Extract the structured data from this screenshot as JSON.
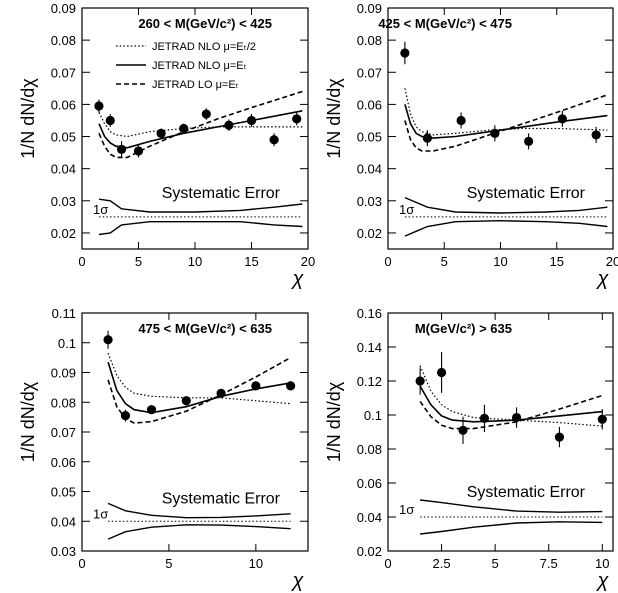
{
  "chart_data": [
    {
      "type": "scatter",
      "title": "260 < M(GeV/c²) < 425",
      "xlabel": "χ",
      "ylabel": "1/N dN/dχ",
      "xlim": [
        0,
        20
      ],
      "ylim": [
        0.015,
        0.09
      ],
      "xticks": [
        "0",
        "5",
        "10",
        "15",
        "20"
      ],
      "yticks": [
        "0.02",
        "0.03",
        "0.04",
        "0.05",
        "0.06",
        "0.07",
        "0.08",
        "0.09"
      ],
      "legend": [
        {
          "label": "JETRAD NLO μ=Eₜ/2",
          "style": "dotted"
        },
        {
          "label": "JETRAD NLO μ=Eₜ",
          "style": "solid"
        },
        {
          "label": "JETRAD LO μ=Eₜ",
          "style": "dashed"
        }
      ],
      "systematic_label": "Systematic Error",
      "sigma_label": "1σ",
      "sigma_line": 0.025,
      "points": [
        {
          "x": 1.5,
          "y": 0.0595,
          "err": 0.002
        },
        {
          "x": 2.5,
          "y": 0.055,
          "err": 0.002
        },
        {
          "x": 3.5,
          "y": 0.046,
          "err": 0.0025
        },
        {
          "x": 5.0,
          "y": 0.0455,
          "err": 0.002
        },
        {
          "x": 7.0,
          "y": 0.051,
          "err": 0.0015
        },
        {
          "x": 9.0,
          "y": 0.0525,
          "err": 0.0015
        },
        {
          "x": 11.0,
          "y": 0.057,
          "err": 0.0018
        },
        {
          "x": 13.0,
          "y": 0.0535,
          "err": 0.0018
        },
        {
          "x": 15.0,
          "y": 0.055,
          "err": 0.002
        },
        {
          "x": 17.0,
          "y": 0.049,
          "err": 0.002
        },
        {
          "x": 19.0,
          "y": 0.0555,
          "err": 0.002
        }
      ],
      "curves": {
        "nlo_half": [
          [
            1.5,
            0.0575
          ],
          [
            2.0,
            0.054
          ],
          [
            2.5,
            0.0515
          ],
          [
            3.0,
            0.0505
          ],
          [
            4.0,
            0.05
          ],
          [
            6.0,
            0.0515
          ],
          [
            9.0,
            0.0525
          ],
          [
            12.0,
            0.053
          ],
          [
            15.0,
            0.053
          ],
          [
            19.5,
            0.053
          ]
        ],
        "nlo": [
          [
            1.5,
            0.054
          ],
          [
            2.0,
            0.05
          ],
          [
            2.5,
            0.048
          ],
          [
            3.0,
            0.047
          ],
          [
            4.0,
            0.0465
          ],
          [
            6.0,
            0.0485
          ],
          [
            9.0,
            0.051
          ],
          [
            12.0,
            0.053
          ],
          [
            15.0,
            0.055
          ],
          [
            19.5,
            0.058
          ]
        ],
        "lo": [
          [
            1.5,
            0.051
          ],
          [
            2.0,
            0.047
          ],
          [
            2.5,
            0.0445
          ],
          [
            3.0,
            0.0435
          ],
          [
            4.0,
            0.0435
          ],
          [
            6.0,
            0.047
          ],
          [
            9.0,
            0.0515
          ],
          [
            12.0,
            0.0555
          ],
          [
            15.0,
            0.059
          ],
          [
            19.5,
            0.064
          ]
        ],
        "sys_upper": [
          [
            1.5,
            0.0305
          ],
          [
            2.5,
            0.03
          ],
          [
            3.5,
            0.0275
          ],
          [
            6.0,
            0.0265
          ],
          [
            10.0,
            0.0265
          ],
          [
            14.0,
            0.027
          ],
          [
            17.0,
            0.028
          ],
          [
            19.5,
            0.029
          ]
        ],
        "sys_lower": [
          [
            1.5,
            0.0195
          ],
          [
            2.5,
            0.02
          ],
          [
            3.5,
            0.0225
          ],
          [
            6.0,
            0.0235
          ],
          [
            10.0,
            0.0235
          ],
          [
            14.0,
            0.0235
          ],
          [
            17.0,
            0.0225
          ],
          [
            19.5,
            0.022
          ]
        ]
      }
    },
    {
      "type": "scatter",
      "title": "425 < M(GeV/c²) < 475",
      "xlabel": "χ",
      "ylabel": "1/N dN/dχ",
      "xlim": [
        0,
        20
      ],
      "ylim": [
        0.015,
        0.09
      ],
      "xticks": [
        "0",
        "5",
        "10",
        "15",
        "20"
      ],
      "yticks": [
        "0.02",
        "0.03",
        "0.04",
        "0.05",
        "0.06",
        "0.07",
        "0.08",
        "0.09"
      ],
      "systematic_label": "Systematic Error",
      "sigma_label": "1σ",
      "sigma_line": 0.025,
      "points": [
        {
          "x": 1.5,
          "y": 0.076,
          "err": 0.0035
        },
        {
          "x": 3.5,
          "y": 0.0495,
          "err": 0.0025
        },
        {
          "x": 6.5,
          "y": 0.055,
          "err": 0.0025
        },
        {
          "x": 9.5,
          "y": 0.051,
          "err": 0.0025
        },
        {
          "x": 12.5,
          "y": 0.0485,
          "err": 0.0025
        },
        {
          "x": 15.5,
          "y": 0.0555,
          "err": 0.0025
        },
        {
          "x": 18.5,
          "y": 0.0505,
          "err": 0.0025
        }
      ],
      "curves": {
        "nlo_half": [
          [
            1.5,
            0.065
          ],
          [
            2.0,
            0.057
          ],
          [
            2.5,
            0.053
          ],
          [
            3.0,
            0.0515
          ],
          [
            4.0,
            0.0505
          ],
          [
            6.0,
            0.051
          ],
          [
            9.0,
            0.052
          ],
          [
            12.0,
            0.0525
          ],
          [
            15.0,
            0.0525
          ],
          [
            19.5,
            0.052
          ]
        ],
        "nlo": [
          [
            1.5,
            0.06
          ],
          [
            2.0,
            0.054
          ],
          [
            2.5,
            0.051
          ],
          [
            3.0,
            0.05
          ],
          [
            4.0,
            0.0495
          ],
          [
            6.0,
            0.05
          ],
          [
            9.0,
            0.0515
          ],
          [
            12.0,
            0.053
          ],
          [
            15.0,
            0.0545
          ],
          [
            19.5,
            0.0565
          ]
        ],
        "lo": [
          [
            1.5,
            0.055
          ],
          [
            2.0,
            0.049
          ],
          [
            2.5,
            0.0465
          ],
          [
            3.0,
            0.0455
          ],
          [
            4.0,
            0.0455
          ],
          [
            6.0,
            0.047
          ],
          [
            9.0,
            0.0505
          ],
          [
            12.0,
            0.054
          ],
          [
            15.0,
            0.0575
          ],
          [
            19.5,
            0.063
          ]
        ],
        "sys_upper": [
          [
            1.5,
            0.031
          ],
          [
            2.5,
            0.0295
          ],
          [
            3.5,
            0.028
          ],
          [
            6.0,
            0.0265
          ],
          [
            10.0,
            0.0262
          ],
          [
            14.0,
            0.0265
          ],
          [
            17.0,
            0.027
          ],
          [
            19.5,
            0.028
          ]
        ],
        "sys_lower": [
          [
            1.5,
            0.019
          ],
          [
            2.5,
            0.0205
          ],
          [
            3.5,
            0.022
          ],
          [
            6.0,
            0.0235
          ],
          [
            10.0,
            0.0238
          ],
          [
            14.0,
            0.0235
          ],
          [
            17.0,
            0.023
          ],
          [
            19.5,
            0.022
          ]
        ]
      }
    },
    {
      "type": "scatter",
      "title": "475 < M(GeV/c²) < 635",
      "xlabel": "χ",
      "ylabel": "1/N dN/dχ",
      "xlim": [
        0,
        13
      ],
      "ylim": [
        0.03,
        0.11
      ],
      "xticks": [
        "0",
        "5",
        "10"
      ],
      "yticks": [
        "0.03",
        "0.04",
        "0.05",
        "0.06",
        "0.07",
        "0.08",
        "0.09",
        "0.1",
        "0.11"
      ],
      "systematic_label": "Systematic Error",
      "sigma_label": "1σ",
      "sigma_line": 0.04,
      "points": [
        {
          "x": 1.5,
          "y": 0.101,
          "err": 0.003
        },
        {
          "x": 2.5,
          "y": 0.0755,
          "err": 0.002
        },
        {
          "x": 4.0,
          "y": 0.0775,
          "err": 0.0015
        },
        {
          "x": 6.0,
          "y": 0.0805,
          "err": 0.0015
        },
        {
          "x": 8.0,
          "y": 0.083,
          "err": 0.0015
        },
        {
          "x": 10.0,
          "y": 0.0855,
          "err": 0.0015
        },
        {
          "x": 12.0,
          "y": 0.0855,
          "err": 0.0015
        }
      ],
      "curves": {
        "nlo_half": [
          [
            1.5,
            0.0965
          ],
          [
            2.0,
            0.089
          ],
          [
            2.5,
            0.085
          ],
          [
            3.0,
            0.083
          ],
          [
            4.0,
            0.082
          ],
          [
            6.0,
            0.0815
          ],
          [
            8.0,
            0.0815
          ],
          [
            10.0,
            0.0805
          ],
          [
            12.0,
            0.0795
          ]
        ],
        "nlo": [
          [
            1.5,
            0.0935
          ],
          [
            2.0,
            0.084
          ],
          [
            2.5,
            0.0795
          ],
          [
            3.0,
            0.0775
          ],
          [
            4.0,
            0.0765
          ],
          [
            6.0,
            0.0785
          ],
          [
            8.0,
            0.082
          ],
          [
            10.0,
            0.0845
          ],
          [
            12.0,
            0.0865
          ]
        ],
        "lo": [
          [
            1.5,
            0.0875
          ],
          [
            2.0,
            0.0785
          ],
          [
            2.5,
            0.0745
          ],
          [
            3.0,
            0.073
          ],
          [
            4.0,
            0.0735
          ],
          [
            6.0,
            0.077
          ],
          [
            8.0,
            0.0825
          ],
          [
            10.0,
            0.0885
          ],
          [
            12.0,
            0.095
          ]
        ],
        "sys_upper": [
          [
            1.5,
            0.046
          ],
          [
            2.5,
            0.0435
          ],
          [
            4.0,
            0.042
          ],
          [
            6.0,
            0.0412
          ],
          [
            8.0,
            0.0413
          ],
          [
            10.0,
            0.0418
          ],
          [
            12.0,
            0.0425
          ]
        ],
        "sys_lower": [
          [
            1.5,
            0.034
          ],
          [
            2.5,
            0.0365
          ],
          [
            4.0,
            0.038
          ],
          [
            6.0,
            0.0388
          ],
          [
            8.0,
            0.0387
          ],
          [
            10.0,
            0.0382
          ],
          [
            12.0,
            0.0375
          ]
        ]
      }
    },
    {
      "type": "scatter",
      "title": "M(GeV/c²) > 635",
      "xlabel": "χ",
      "ylabel": "1/N dN/dχ",
      "xlim": [
        0,
        10.5
      ],
      "ylim": [
        0.02,
        0.16
      ],
      "xticks": [
        "0",
        "2.5",
        "5",
        "7.5",
        "10"
      ],
      "yticks": [
        "0.02",
        "0.04",
        "0.06",
        "0.08",
        "0.1",
        "0.12",
        "0.14",
        "0.16"
      ],
      "systematic_label": "Systematic Error",
      "sigma_label": "1σ",
      "sigma_line": 0.04,
      "points": [
        {
          "x": 1.5,
          "y": 0.12,
          "err": 0.008
        },
        {
          "x": 2.5,
          "y": 0.125,
          "err": 0.012
        },
        {
          "x": 3.5,
          "y": 0.091,
          "err": 0.008
        },
        {
          "x": 4.5,
          "y": 0.098,
          "err": 0.008
        },
        {
          "x": 6.0,
          "y": 0.0985,
          "err": 0.006
        },
        {
          "x": 8.0,
          "y": 0.087,
          "err": 0.006
        },
        {
          "x": 10.0,
          "y": 0.0975,
          "err": 0.006
        }
      ],
      "curves": {
        "nlo_half": [
          [
            1.5,
            0.129
          ],
          [
            2.0,
            0.114
          ],
          [
            2.5,
            0.106
          ],
          [
            3.0,
            0.102
          ],
          [
            4.0,
            0.0985
          ],
          [
            6.0,
            0.097
          ],
          [
            8.0,
            0.0955
          ],
          [
            10.0,
            0.0935
          ]
        ],
        "nlo": [
          [
            1.5,
            0.117
          ],
          [
            2.0,
            0.106
          ],
          [
            2.5,
            0.0995
          ],
          [
            3.0,
            0.097
          ],
          [
            4.0,
            0.096
          ],
          [
            6.0,
            0.097
          ],
          [
            8.0,
            0.0995
          ],
          [
            10.0,
            0.102
          ]
        ],
        "lo": [
          [
            1.5,
            0.108
          ],
          [
            2.0,
            0.099
          ],
          [
            2.5,
            0.094
          ],
          [
            3.0,
            0.092
          ],
          [
            4.0,
            0.092
          ],
          [
            6.0,
            0.096
          ],
          [
            8.0,
            0.1035
          ],
          [
            10.0,
            0.1115
          ]
        ],
        "sys_upper": [
          [
            1.5,
            0.05
          ],
          [
            2.5,
            0.0485
          ],
          [
            4.0,
            0.046
          ],
          [
            6.0,
            0.0435
          ],
          [
            8.0,
            0.0428
          ],
          [
            10.0,
            0.0432
          ]
        ],
        "sys_lower": [
          [
            1.5,
            0.03
          ],
          [
            2.5,
            0.0315
          ],
          [
            4.0,
            0.034
          ],
          [
            6.0,
            0.0365
          ],
          [
            8.0,
            0.0372
          ],
          [
            10.0,
            0.0368
          ]
        ]
      }
    }
  ]
}
